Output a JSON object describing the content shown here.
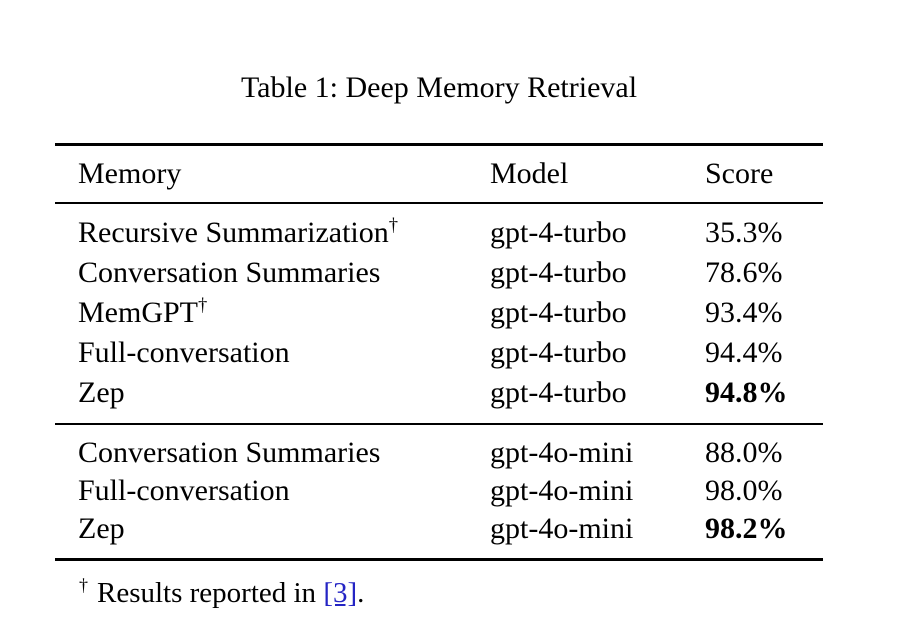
{
  "caption": "Table 1: Deep Memory Retrieval",
  "table": {
    "headers": [
      "Memory",
      "Model",
      "Score"
    ],
    "sections": [
      {
        "rows": [
          {
            "memory": "Recursive Summarization",
            "dagger": "†",
            "model": "gpt-4-turbo",
            "score": "35.3%"
          },
          {
            "memory": "Conversation Summaries",
            "model": "gpt-4-turbo",
            "score": "78.6%"
          },
          {
            "memory": "MemGPT",
            "dagger": "†",
            "model": "gpt-4-turbo",
            "score": "93.4%"
          },
          {
            "memory": "Full-conversation",
            "model": "gpt-4-turbo",
            "score": "94.4%"
          },
          {
            "memory": "Zep",
            "model": "gpt-4-turbo",
            "score": "94.8%"
          }
        ]
      },
      {
        "rows": [
          {
            "memory": "Conversation Summaries",
            "model": "gpt-4o-mini",
            "score": "88.0%"
          },
          {
            "memory": "Full-conversation",
            "model": "gpt-4o-mini",
            "score": "98.0%"
          },
          {
            "memory": "Zep",
            "model": "gpt-4o-mini",
            "score": "98.2%"
          }
        ]
      }
    ]
  },
  "footnote": {
    "marker": "†",
    "text": "Results reported in ",
    "link": "[3]",
    "suffix": "."
  },
  "colors": {
    "text": "#000000",
    "background": "#ffffff",
    "link": "#2424c4"
  }
}
